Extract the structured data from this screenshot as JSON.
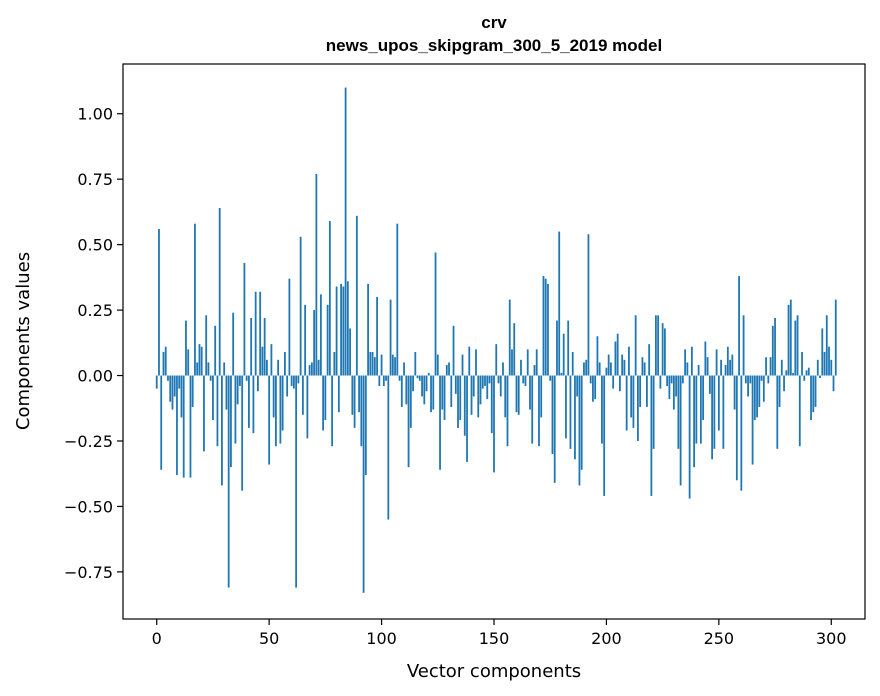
{
  "chart_data": {
    "type": "bar",
    "title": "crv",
    "subtitle": "news_upos_skipgram_300_5_2019 model",
    "xlabel": "Vector components",
    "ylabel": "Components values",
    "xlim": [
      -15,
      315
    ],
    "ylim": [
      -0.93,
      1.19
    ],
    "xticks": [
      0,
      50,
      100,
      150,
      200,
      250,
      300
    ],
    "xtick_labels": [
      "0",
      "50",
      "100",
      "150",
      "200",
      "250",
      "300"
    ],
    "yticks": [
      -0.75,
      -0.5,
      -0.25,
      0.0,
      0.25,
      0.5,
      0.75,
      1.0
    ],
    "ytick_labels": [
      "−0.75",
      "−0.50",
      "−0.25",
      "0.00",
      "0.25",
      "0.50",
      "0.75",
      "1.00"
    ],
    "grid": false,
    "bar_color": "#1f77b4",
    "values": [
      -0.05,
      0.56,
      -0.36,
      0.09,
      0.11,
      -0.02,
      -0.1,
      -0.13,
      -0.08,
      -0.38,
      -0.05,
      -0.16,
      -0.39,
      0.21,
      0.1,
      -0.39,
      -0.12,
      0.58,
      0.05,
      0.12,
      0.11,
      -0.29,
      0.23,
      0.05,
      -0.02,
      -0.17,
      0.19,
      -0.27,
      0.64,
      -0.42,
      0.05,
      -0.13,
      -0.81,
      -0.35,
      0.24,
      -0.26,
      -0.11,
      -0.04,
      -0.44,
      0.43,
      -0.02,
      -0.2,
      0.22,
      -0.22,
      0.32,
      -0.06,
      0.32,
      0.11,
      0.22,
      0.06,
      -0.34,
      0.12,
      -0.16,
      -0.27,
      0.06,
      -0.26,
      -0.21,
      0.09,
      -0.08,
      0.37,
      -0.04,
      -0.05,
      -0.81,
      -0.03,
      0.53,
      -0.15,
      0.27,
      -0.24,
      0.04,
      0.05,
      0.25,
      0.77,
      0.06,
      0.31,
      -0.21,
      -0.17,
      0.27,
      0.59,
      -0.27,
      0.09,
      0.34,
      -0.14,
      0.35,
      0.34,
      1.1,
      0.36,
      0.18,
      -0.15,
      -0.2,
      0.61,
      -0.14,
      -0.27,
      -0.83,
      -0.38,
      0.35,
      0.09,
      0.09,
      0.07,
      0.3,
      -0.04,
      0.08,
      -0.04,
      -0.02,
      -0.55,
      0.29,
      0.08,
      0.07,
      0.58,
      -0.02,
      -0.12,
      0.05,
      -0.11,
      -0.35,
      -0.2,
      -0.06,
      0.09,
      -0.01,
      -0.02,
      -0.08,
      -0.11,
      -0.06,
      0.01,
      -0.14,
      -0.13,
      0.47,
      0.08,
      -0.36,
      -0.13,
      -0.17,
      0.04,
      0.05,
      -0.12,
      0.19,
      -0.07,
      -0.2,
      -0.17,
      0.08,
      -0.23,
      -0.33,
      0.11,
      -0.15,
      -0.08,
      0.1,
      -0.16,
      -0.11,
      -0.05,
      -0.04,
      -0.09,
      -0.03,
      -0.22,
      -0.37,
      0.12,
      -0.03,
      -0.08,
      0.05,
      -0.16,
      -0.27,
      0.29,
      0.1,
      0.2,
      -0.14,
      -0.15,
      0.06,
      -0.03,
      -0.04,
      0.1,
      -0.13,
      -0.26,
      0.04,
      0.1,
      -0.27,
      -0.16,
      0.38,
      0.37,
      0.35,
      -0.02,
      -0.3,
      -0.41,
      0.21,
      0.55,
      0.01,
      0.16,
      -0.24,
      0.21,
      -0.28,
      0.09,
      -0.32,
      -0.08,
      -0.42,
      -0.36,
      0.05,
      0.06,
      0.54,
      -0.03,
      -0.1,
      -0.09,
      0.15,
      0.05,
      -0.26,
      -0.46,
      0.03,
      0.08,
      0.05,
      -0.05,
      0.13,
      0.16,
      -0.06,
      0.08,
      0.06,
      -0.21,
      0.11,
      -0.16,
      -0.2,
      0.23,
      -0.25,
      -0.12,
      0.07,
      0.05,
      -0.12,
      0.12,
      -0.46,
      -0.28,
      0.23,
      0.23,
      -0.05,
      0.2,
      0.18,
      -0.04,
      -0.09,
      -0.03,
      -0.13,
      -0.08,
      -0.28,
      -0.42,
      -0.03,
      0.1,
      0.05,
      -0.47,
      0.11,
      -0.35,
      -0.26,
      0.04,
      -0.26,
      -0.17,
      0.13,
      0.07,
      -0.07,
      -0.32,
      -0.28,
      0.1,
      -0.21,
      0.06,
      -0.28,
      0.04,
      0.11,
      0.06,
      0.08,
      -0.13,
      -0.4,
      0.38,
      -0.44,
      0.23,
      -0.03,
      -0.08,
      -0.03,
      -0.34,
      -0.17,
      -0.16,
      -0.12,
      -0.02,
      -0.1,
      0.07,
      -0.03,
      0.07,
      0.19,
      0.22,
      -0.28,
      -0.12,
      0.06,
      -0.06,
      0.02,
      0.27,
      0.29,
      0.01,
      0.21,
      0.23,
      -0.27,
      0.09,
      -0.02,
      0.02,
      0.03,
      -0.17,
      -0.14,
      -0.12,
      0.06,
      -0.01,
      0.18,
      0.09,
      0.23,
      0.11,
      0.06,
      -0.06,
      0.29
    ]
  }
}
